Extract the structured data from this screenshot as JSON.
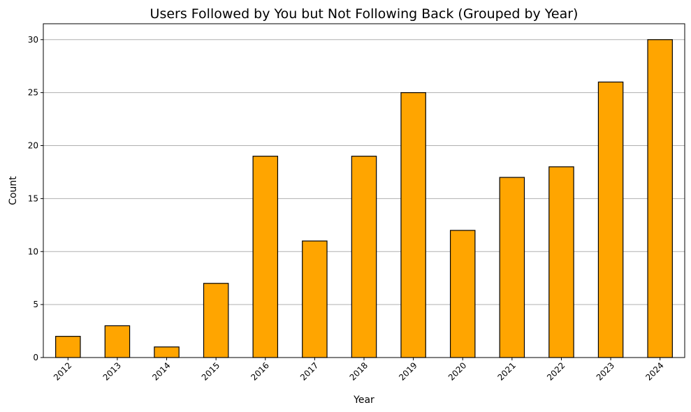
{
  "chart_data": {
    "type": "bar",
    "title": "Users Followed by You but Not Following Back (Grouped by Year)",
    "xlabel": "Year",
    "ylabel": "Count",
    "categories": [
      "2012",
      "2013",
      "2014",
      "2015",
      "2016",
      "2017",
      "2018",
      "2019",
      "2020",
      "2021",
      "2022",
      "2023",
      "2024"
    ],
    "values": [
      2,
      3,
      1,
      7,
      19,
      11,
      19,
      25,
      12,
      17,
      18,
      26,
      30
    ],
    "ylim": [
      0,
      31.5
    ],
    "yticks": [
      0,
      5,
      10,
      15,
      20,
      25,
      30
    ],
    "grid": "y-axis",
    "bar_color": "#FFA500",
    "edge_color": "#000000",
    "grid_color": "#b0b0b0"
  }
}
